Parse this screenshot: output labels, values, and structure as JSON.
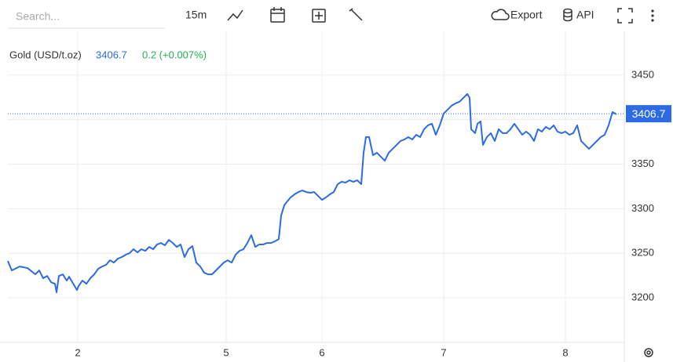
{
  "toolbar": {
    "search_placeholder": "Search...",
    "interval": "15m",
    "export": "Export",
    "api": "API"
  },
  "chart_data": {
    "type": "line",
    "last_value": 3406.7,
    "change": "0.2 (+0.007%)",
    "xlim": [
      0,
      785
    ],
    "ylim": [
      3150,
      3464
    ],
    "xticks": [
      {
        "value": 89,
        "label": "2"
      },
      {
        "value": 278,
        "label": "5"
      },
      {
        "value": 400,
        "label": "6"
      },
      {
        "value": 555,
        "label": "7"
      },
      {
        "value": 710,
        "label": "8"
      }
    ],
    "yticks": [
      3200,
      3250,
      3300,
      3350,
      3400,
      3450
    ],
    "grid": true,
    "x": [
      0,
      5,
      15,
      25,
      35,
      40,
      45,
      50,
      55,
      60,
      62,
      65,
      70,
      75,
      78,
      85,
      88,
      90,
      95,
      100,
      105,
      110,
      115,
      120,
      125,
      130,
      135,
      140,
      145,
      150,
      155,
      160,
      165,
      170,
      175,
      180,
      185,
      190,
      195,
      200,
      205,
      210,
      215,
      220,
      225,
      230,
      235,
      240,
      245,
      250,
      255,
      260,
      265,
      270,
      275,
      280,
      285,
      290,
      295,
      300,
      305,
      310,
      315,
      320,
      325,
      330,
      335,
      340,
      345,
      348,
      352,
      355,
      360,
      365,
      370,
      375,
      380,
      385,
      390,
      395,
      400,
      405,
      410,
      415,
      420,
      425,
      430,
      435,
      440,
      445,
      450,
      453,
      456,
      460,
      465,
      470,
      475,
      480,
      485,
      490,
      495,
      500,
      505,
      510,
      515,
      520,
      525,
      530,
      535,
      540,
      545,
      550,
      555,
      560,
      565,
      570,
      575,
      580,
      585,
      588,
      590,
      595,
      598,
      602,
      605,
      610,
      615,
      620,
      625,
      630,
      635,
      640,
      645,
      650,
      655,
      660,
      665,
      670,
      675,
      680,
      685,
      690,
      695,
      700,
      705,
      710,
      715,
      720,
      725,
      730,
      735,
      740,
      745,
      750,
      755,
      760,
      765,
      770,
      775
    ],
    "series": [
      {
        "name": "Gold (USD/t.oz)",
        "color": "#2d6be4",
        "values": [
          3241.4,
          3230.8,
          3235.2,
          3233.5,
          3226.4,
          3230.8,
          3222.0,
          3224.6,
          3217.6,
          3215.8,
          3206.2,
          3224.6,
          3226.4,
          3219.4,
          3223.8,
          3213.2,
          3208.8,
          3213.2,
          3219.4,
          3215.8,
          3222.0,
          3226.4,
          3232.6,
          3235.2,
          3237.0,
          3242.2,
          3239.6,
          3244.0,
          3245.8,
          3248.4,
          3250.2,
          3254.6,
          3251.1,
          3254.6,
          3252.8,
          3257.2,
          3254.6,
          3259.9,
          3261.6,
          3259.0,
          3265.1,
          3261.6,
          3257.2,
          3259.9,
          3245.8,
          3254.6,
          3258.1,
          3239.6,
          3235.2,
          3228.2,
          3226.4,
          3226.4,
          3230.8,
          3235.2,
          3239.6,
          3242.2,
          3239.6,
          3248.4,
          3252.8,
          3254.6,
          3261.6,
          3270.4,
          3257.2,
          3259.9,
          3259.9,
          3261.6,
          3261.6,
          3263.4,
          3266.0,
          3292.4,
          3303.9,
          3307.4,
          3312.7,
          3316.2,
          3318.8,
          3320.6,
          3318.8,
          3318.0,
          3318.8,
          3314.4,
          3310.0,
          3312.7,
          3316.2,
          3318.8,
          3327.6,
          3330.3,
          3329.4,
          3332.0,
          3330.3,
          3332.0,
          3327.6,
          3362.9,
          3380.5,
          3380.5,
          3360.2,
          3362.9,
          3358.4,
          3354.0,
          3362.9,
          3367.3,
          3371.7,
          3376.1,
          3377.8,
          3380.5,
          3377.8,
          3383.1,
          3380.5,
          3389.3,
          3393.7,
          3395.4,
          3383.1,
          3393.7,
          3406.9,
          3411.3,
          3415.7,
          3418.3,
          3420.1,
          3424.5,
          3428.9,
          3424.5,
          3389.3,
          3384.9,
          3395.4,
          3398.1,
          3371.7,
          3380.5,
          3384.9,
          3376.1,
          3389.3,
          3384.9,
          3384.9,
          3389.3,
          3395.4,
          3389.3,
          3383.1,
          3386.6,
          3383.1,
          3376.1,
          3389.3,
          3386.6,
          3391.9,
          3389.3,
          3393.7,
          3386.6,
          3384.9,
          3386.6,
          3383.1,
          3384.9,
          3393.7,
          3376.1,
          3371.7,
          3367.3,
          3371.7,
          3376.1,
          3380.5,
          3383.1,
          3393.7,
          3408.6,
          3406.0
        ]
      }
    ]
  }
}
